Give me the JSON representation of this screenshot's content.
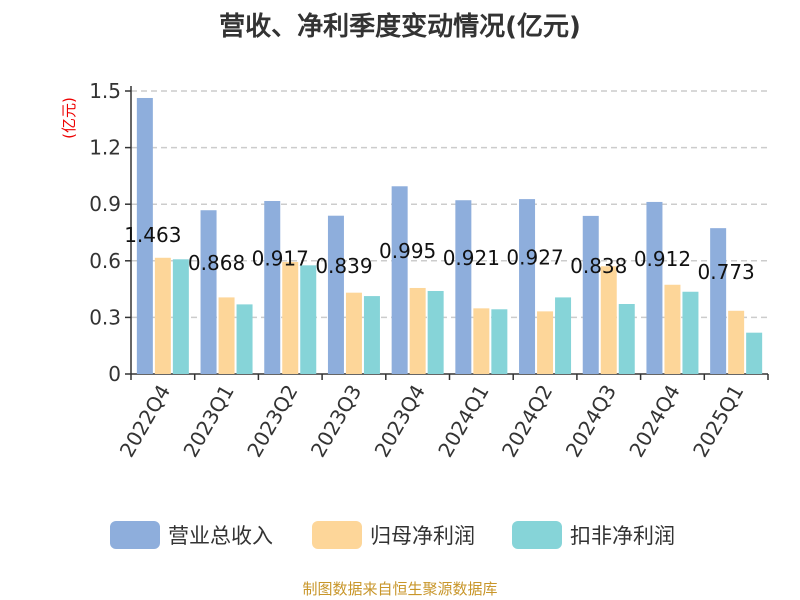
{
  "chart_data": {
    "type": "bar",
    "title": "营收、净利季度变动情况(亿元)",
    "ylabel": "(亿元)",
    "xlabel": "",
    "ylim": [
      0,
      1.5
    ],
    "yticks": [
      "0",
      "0.3",
      "0.6",
      "0.9",
      "1.2",
      "1.5"
    ],
    "grid": true,
    "legend_position": "bottom",
    "categories": [
      "2022Q4",
      "2023Q1",
      "2023Q2",
      "2023Q3",
      "2023Q4",
      "2024Q1",
      "2024Q2",
      "2024Q3",
      "2024Q4",
      "2025Q1"
    ],
    "series": [
      {
        "name": "营业总收入",
        "color": "#8eaedc",
        "values": [
          1.463,
          0.868,
          0.917,
          0.839,
          0.995,
          0.921,
          0.927,
          0.838,
          0.912,
          0.773
        ],
        "labels": [
          "1.463",
          "0.868",
          "0.917",
          "0.839",
          "0.995",
          "0.921",
          "0.927",
          "0.838",
          "0.912",
          "0.773"
        ]
      },
      {
        "name": "归母净利润",
        "color": "#fdd699",
        "values": [
          0.616,
          0.406,
          0.594,
          0.431,
          0.456,
          0.348,
          0.332,
          0.571,
          0.473,
          0.335
        ]
      },
      {
        "name": "扣非净利润",
        "color": "#86d4d8",
        "values": [
          0.608,
          0.369,
          0.576,
          0.413,
          0.44,
          0.343,
          0.406,
          0.371,
          0.436,
          0.219
        ]
      }
    ]
  },
  "source": "制图数据来自恒生聚源数据库"
}
